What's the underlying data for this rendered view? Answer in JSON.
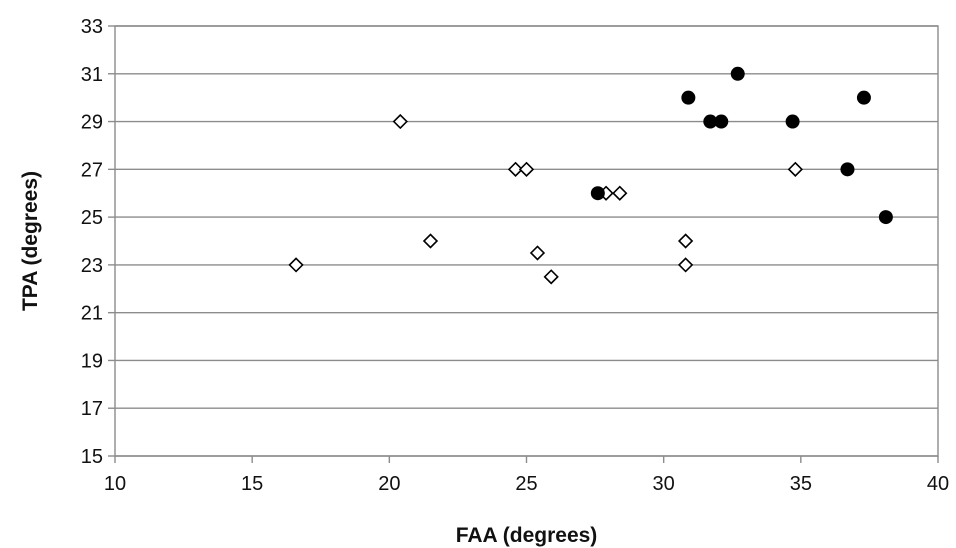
{
  "chart_data": {
    "type": "scatter",
    "title": "",
    "xlabel": "FAA (degrees)",
    "ylabel": "TPA (degrees)",
    "xlim": [
      10,
      40
    ],
    "ylim": [
      15,
      33
    ],
    "xticks": [
      10,
      15,
      20,
      25,
      30,
      35,
      40
    ],
    "yticks": [
      15,
      17,
      19,
      21,
      23,
      25,
      27,
      29,
      31,
      33
    ],
    "grid": "horizontal",
    "legend": "none",
    "series": [
      {
        "marker": "open-diamond",
        "color": "#000000",
        "points": [
          {
            "x": 16.6,
            "y": 23
          },
          {
            "x": 20.4,
            "y": 29
          },
          {
            "x": 21.5,
            "y": 24
          },
          {
            "x": 24.6,
            "y": 27
          },
          {
            "x": 25.0,
            "y": 27
          },
          {
            "x": 25.4,
            "y": 23.5
          },
          {
            "x": 25.9,
            "y": 22.5
          },
          {
            "x": 27.9,
            "y": 26
          },
          {
            "x": 28.4,
            "y": 26
          },
          {
            "x": 30.8,
            "y": 24
          },
          {
            "x": 30.8,
            "y": 23
          },
          {
            "x": 34.8,
            "y": 27
          }
        ]
      },
      {
        "marker": "filled-circle",
        "color": "#000000",
        "points": [
          {
            "x": 27.6,
            "y": 26
          },
          {
            "x": 30.9,
            "y": 30
          },
          {
            "x": 31.7,
            "y": 29
          },
          {
            "x": 32.1,
            "y": 29
          },
          {
            "x": 32.7,
            "y": 31
          },
          {
            "x": 34.7,
            "y": 29
          },
          {
            "x": 36.7,
            "y": 27
          },
          {
            "x": 37.3,
            "y": 30
          },
          {
            "x": 38.1,
            "y": 25
          }
        ]
      }
    ]
  }
}
